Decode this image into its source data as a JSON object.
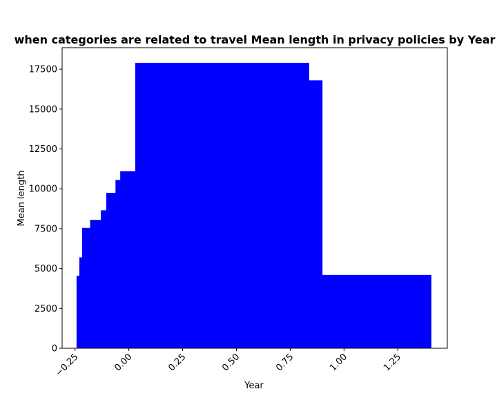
{
  "chart_data": {
    "type": "bar",
    "title": "when categories are related to travel Mean length in privacy policies by Year",
    "xlabel": "Year",
    "ylabel": "Mean length",
    "xlim": [
      -0.31,
      1.48
    ],
    "ylim": [
      0,
      18850
    ],
    "xticks": [
      -0.25,
      0.0,
      0.25,
      0.5,
      0.75,
      1.0,
      1.25
    ],
    "xtick_labels": [
      "−0.25",
      "0.00",
      "0.25",
      "0.50",
      "0.75",
      "1.00",
      "1.25"
    ],
    "yticks": [
      0,
      2500,
      5000,
      7500,
      10000,
      12500,
      15000,
      17500
    ],
    "ytick_labels": [
      "0",
      "2500",
      "5000",
      "7500",
      "10000",
      "12500",
      "15000",
      "17500"
    ],
    "bar_color": "#0000ff",
    "bars": [
      {
        "x0": -0.243,
        "x1": 1.406,
        "value": 4550
      },
      {
        "x0": -0.23,
        "x1": -0.213,
        "value": 5700
      },
      {
        "x0": -0.217,
        "x1": 0.03,
        "value": 7550
      },
      {
        "x0": -0.18,
        "x1": 0.03,
        "value": 8050
      },
      {
        "x0": -0.13,
        "x1": 0.03,
        "value": 8650
      },
      {
        "x0": -0.105,
        "x1": 0.03,
        "value": 9750
      },
      {
        "x0": -0.062,
        "x1": 0.03,
        "value": 10550
      },
      {
        "x0": -0.04,
        "x1": 0.03,
        "value": 11100
      },
      {
        "x0": 0.03,
        "x1": 0.9,
        "value": 16800
      },
      {
        "x0": 0.03,
        "x1": 0.838,
        "value": 17900
      },
      {
        "x0": 0.897,
        "x1": 1.406,
        "value": 4600
      }
    ],
    "grid": false,
    "legend": "none"
  }
}
